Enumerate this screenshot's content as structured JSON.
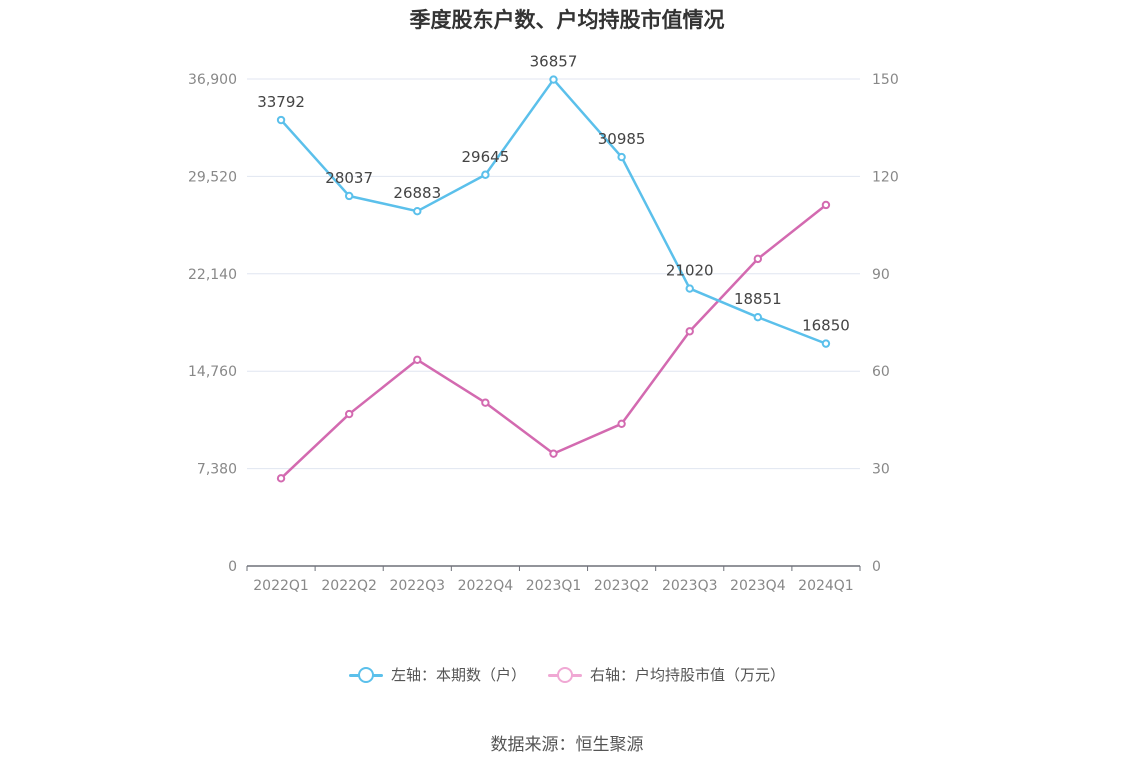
{
  "chart_data": {
    "type": "line",
    "title": "季度股东户数、户均持股市值情况",
    "categories": [
      "2022Q1",
      "2022Q2",
      "2022Q3",
      "2022Q4",
      "2023Q1",
      "2023Q2",
      "2023Q3",
      "2023Q4",
      "2024Q1"
    ],
    "series": [
      {
        "name": "左轴：本期数（户）",
        "axis": "left",
        "color": "#5bc0eb",
        "values": [
          33792,
          28037,
          26883,
          29645,
          36857,
          30985,
          21020,
          18851,
          16850
        ],
        "labels": [
          "33792",
          "28037",
          "26883",
          "29645",
          "36857",
          "30985",
          "21020",
          "18851",
          "16850"
        ]
      },
      {
        "name": "右轴：户均持股市值（万元）",
        "axis": "right",
        "color": "#d36ab0",
        "values": [
          27.0,
          46.8,
          63.5,
          50.3,
          34.6,
          43.8,
          72.3,
          94.6,
          111.2
        ]
      }
    ],
    "y_left": {
      "min": 0,
      "max": 36900,
      "ticks": [
        "0",
        "7,380",
        "14,760",
        "22,140",
        "29,520",
        "36,900"
      ]
    },
    "y_right": {
      "min": 0,
      "max": 150,
      "ticks": [
        "0",
        "30",
        "60",
        "90",
        "120",
        "150"
      ]
    },
    "grid": true,
    "legend_position": "bottom",
    "source": "数据来源：恒生聚源"
  }
}
